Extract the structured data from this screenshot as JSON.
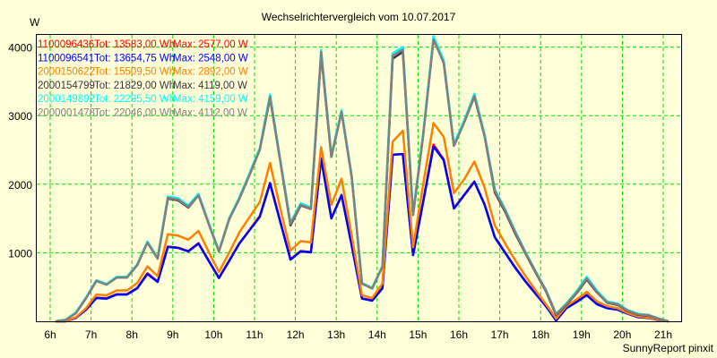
{
  "chart_data": {
    "type": "line",
    "title": "Wechselrichtervergleich vom 10.07.2017",
    "ylabel": "W",
    "xlabel": "",
    "footer": "SunnyReport pinxit",
    "xlim": [
      5.67,
      21.43
    ],
    "ylim": [
      0,
      4200
    ],
    "grid": true,
    "legend_position": "top-left",
    "x_ticks": [
      6,
      7,
      8,
      9,
      10,
      11,
      12,
      13,
      14,
      15,
      16,
      17,
      18,
      19,
      20,
      21
    ],
    "x_tick_labels": [
      "6h",
      "7h",
      "8h",
      "9h",
      "10h",
      "11h",
      "12h",
      "13h",
      "14h",
      "15h",
      "16h",
      "17h",
      "18h",
      "19h",
      "20h",
      "21h"
    ],
    "y_ticks": [
      1000,
      2000,
      3000,
      4000
    ],
    "y_tick_labels": [
      "1000",
      "2000",
      "3000",
      "4000"
    ],
    "x_start_hour": 6.13,
    "x_step_hours": 0.25,
    "series": [
      {
        "name": "1100096436",
        "total": "Tot: 13583,00 Wh",
        "max": "Max: 2577,00 W",
        "color": "#ff0000",
        "values": [
          0,
          0,
          55,
          175,
          345,
          335,
          395,
          395,
          485,
          700,
          580,
          1090,
          1075,
          1025,
          1140,
          885,
          635,
          885,
          1140,
          1335,
          1535,
          2020,
          1460,
          905,
          1025,
          1010,
          2380,
          1505,
          1845,
          1105,
          335,
          305,
          485,
          2430,
          2440,
          970,
          1760,
          2577,
          2360,
          1650,
          1845,
          2040,
          1705,
          1230,
          1005,
          785,
          585,
          405,
          225,
          15,
          195,
          285,
          385,
          255,
          195,
          175,
          115,
          70,
          50,
          20,
          0
        ]
      },
      {
        "name": "1100096541",
        "total": "Tot: 13654,75 Wh",
        "max": "Max: 2548,00 W",
        "color": "#0000ff",
        "values": [
          0,
          0,
          50,
          170,
          340,
          330,
          390,
          390,
          480,
          690,
          575,
          1085,
          1070,
          1020,
          1135,
          880,
          630,
          880,
          1135,
          1330,
          1525,
          2010,
          1450,
          900,
          1020,
          1005,
          2375,
          1500,
          1840,
          1100,
          330,
          300,
          480,
          2430,
          2440,
          965,
          1750,
          2548,
          2350,
          1645,
          1840,
          2035,
          1700,
          1225,
          1000,
          780,
          580,
          400,
          220,
          10,
          190,
          280,
          380,
          250,
          190,
          170,
          110,
          60,
          50,
          20,
          0
        ]
      },
      {
        "name": "2000150622",
        "total": "Tot: 15509,50 Wh",
        "max": "Max: 2892,00 W",
        "color": "#ff8000",
        "values": [
          0,
          0,
          60,
          190,
          390,
          380,
          450,
          450,
          560,
          800,
          660,
          1270,
          1250,
          1190,
          1320,
          1010,
          720,
          1000,
          1300,
          1520,
          1740,
          2310,
          1650,
          1030,
          1170,
          1150,
          2540,
          1700,
          2080,
          1250,
          380,
          340,
          550,
          2620,
          2780,
          1080,
          2010,
          2892,
          2690,
          1870,
          2070,
          2330,
          1950,
          1400,
          1140,
          890,
          660,
          450,
          250,
          40,
          220,
          320,
          430,
          290,
          220,
          190,
          120,
          70,
          55,
          25,
          0
        ]
      },
      {
        "name": "2000154799",
        "total": "Tot: 21829,00 Wh",
        "max": "Max: 4119,00 W",
        "color": "#403040",
        "values": [
          0,
          20,
          120,
          340,
          590,
          535,
          640,
          640,
          820,
          1150,
          915,
          1790,
          1765,
          1660,
          1840,
          1420,
          1020,
          1490,
          1790,
          2140,
          2505,
          3260,
          2340,
          1400,
          1690,
          1640,
          3900,
          2400,
          3055,
          2100,
          550,
          480,
          800,
          3830,
          3930,
          1550,
          2730,
          4119,
          3770,
          2560,
          2900,
          3280,
          2700,
          1880,
          1600,
          1280,
          990,
          710,
          440,
          90,
          240,
          410,
          610,
          420,
          270,
          240,
          150,
          95,
          85,
          40,
          0
        ]
      },
      {
        "name": "2000149892",
        "total": "Tot: 22295,50 Wh",
        "max": "Max: 4159,00 W",
        "color": "#00ffff",
        "values": [
          0,
          25,
          130,
          350,
          600,
          545,
          650,
          650,
          830,
          1165,
          925,
          1820,
          1795,
          1690,
          1860,
          1435,
          1030,
          1505,
          1810,
          2165,
          2530,
          3310,
          2360,
          1440,
          1720,
          1665,
          3960,
          2425,
          3080,
          2120,
          560,
          490,
          810,
          3910,
          4000,
          1570,
          2760,
          4159,
          3810,
          2590,
          2930,
          3320,
          2730,
          1925,
          1640,
          1315,
          1010,
          730,
          460,
          110,
          260,
          440,
          650,
          445,
          290,
          260,
          165,
          110,
          95,
          45,
          0
        ]
      },
      {
        "name": "2000001478",
        "total": "Tot: 22046,00 Wh",
        "max": "Max: 4112,00 W",
        "color": "#808080",
        "values": [
          0,
          20,
          120,
          340,
          590,
          535,
          640,
          640,
          820,
          1150,
          915,
          1800,
          1775,
          1670,
          1840,
          1420,
          1020,
          1490,
          1790,
          2140,
          2505,
          3275,
          2340,
          1420,
          1700,
          1645,
          3930,
          2400,
          3055,
          2100,
          550,
          480,
          800,
          3875,
          3965,
          1550,
          2730,
          4112,
          3770,
          2560,
          2900,
          3290,
          2700,
          1905,
          1620,
          1300,
          1000,
          720,
          450,
          100,
          250,
          420,
          625,
          430,
          275,
          250,
          155,
          100,
          90,
          40,
          0
        ]
      }
    ]
  }
}
